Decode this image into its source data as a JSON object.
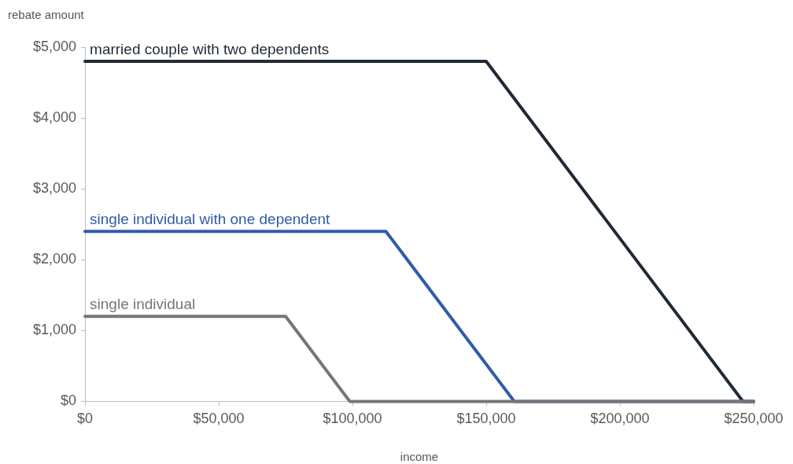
{
  "chart_data": {
    "type": "line",
    "xlabel": "income",
    "ylabel": "rebate amount",
    "xlim": [
      0,
      250000
    ],
    "xticks": [
      {
        "value": 0,
        "label": "$0"
      },
      {
        "value": 50000,
        "label": "$50,000"
      },
      {
        "value": 100000,
        "label": "$100,000"
      },
      {
        "value": 150000,
        "label": "$150,000"
      },
      {
        "value": 200000,
        "label": "$200,000"
      },
      {
        "value": 250000,
        "label": "$250,000"
      }
    ],
    "ylim": [
      0,
      5000
    ],
    "yticks": [
      {
        "value": 0,
        "label": "$0"
      },
      {
        "value": 1000,
        "label": "$1,000"
      },
      {
        "value": 2000,
        "label": "$2,000"
      },
      {
        "value": 3000,
        "label": "$3,000"
      },
      {
        "value": 4000,
        "label": "$4,000"
      },
      {
        "value": 5000,
        "label": "$5,000"
      }
    ],
    "grid": false,
    "legend": false,
    "marker": "none",
    "line_style": "solid",
    "series": [
      {
        "name": "single individual",
        "color": "#767676",
        "x": [
          0,
          75000,
          99000,
          250000
        ],
        "values": [
          1200,
          1200,
          0,
          0
        ]
      },
      {
        "name": "single individual with one dependent",
        "color": "#2e5ca8",
        "x": [
          0,
          112500,
          160500,
          250000
        ],
        "values": [
          2400,
          2400,
          0,
          0
        ]
      },
      {
        "name": "married couple with two dependents",
        "color": "#1f2a36",
        "x": [
          0,
          150000,
          246000,
          250000
        ],
        "values": [
          4800,
          4800,
          0,
          0
        ]
      }
    ]
  }
}
